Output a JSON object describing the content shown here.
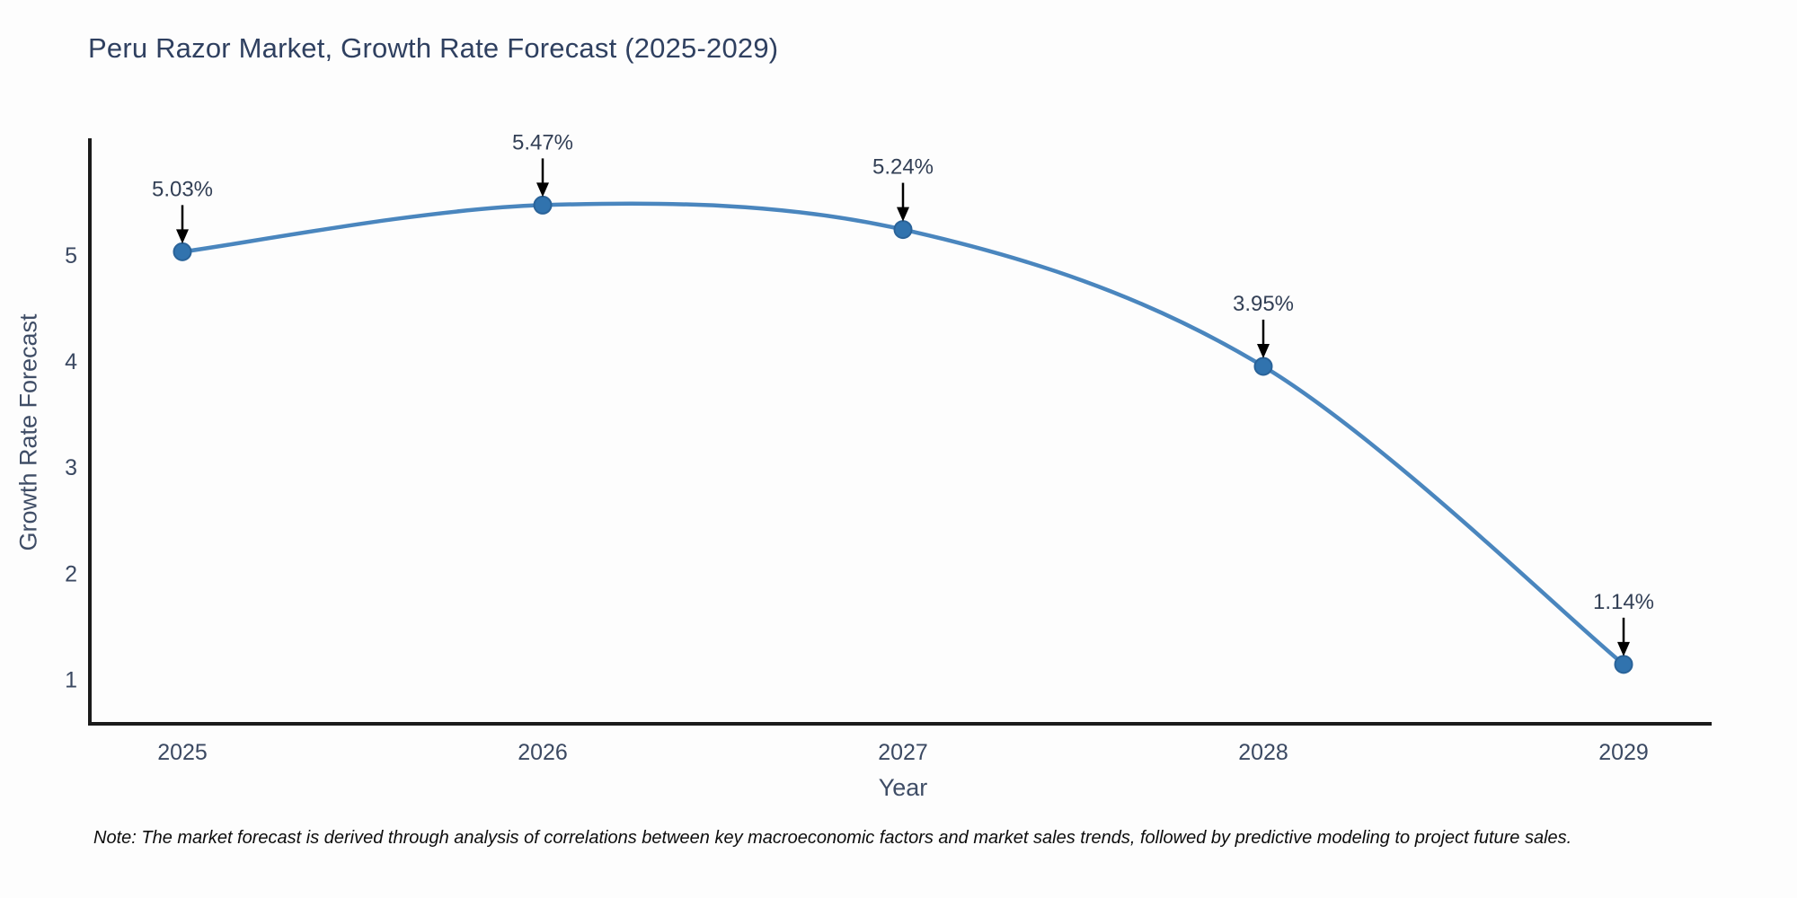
{
  "title": "Peru Razor Market, Growth Rate Forecast (2025-2029)",
  "note": "Note: The market forecast is derived through analysis of correlations between key macroeconomic factors and market sales trends, followed by predictive modeling to project future sales.",
  "chart_data": {
    "type": "line",
    "title": "Peru Razor Market, Growth Rate Forecast (2025-2029)",
    "xlabel": "Year",
    "ylabel": "Growth Rate Forecast",
    "categories": [
      "2025",
      "2026",
      "2027",
      "2028",
      "2029"
    ],
    "series": [
      {
        "name": "Growth Rate Forecast",
        "values": [
          5.03,
          5.47,
          5.24,
          3.95,
          1.14
        ],
        "point_labels": [
          "5.03%",
          "5.47%",
          "5.24%",
          "3.95%",
          "1.14%"
        ]
      }
    ],
    "yticks": [
      1,
      2,
      3,
      4,
      5
    ],
    "ylim": [
      0.58,
      6.1
    ],
    "grid": false,
    "legend_position": "none",
    "annotations_style": "value labels above points with downward arrows",
    "colors": {
      "line": "#4a86be",
      "marker_fill": "#3173ae",
      "marker_edge": "#2a6399",
      "axis_line": "#1b1b1b",
      "tick_text": "#3b4962",
      "annotation_text": "#323f55",
      "arrow": "#000000",
      "background": "#fdfdfd"
    }
  }
}
